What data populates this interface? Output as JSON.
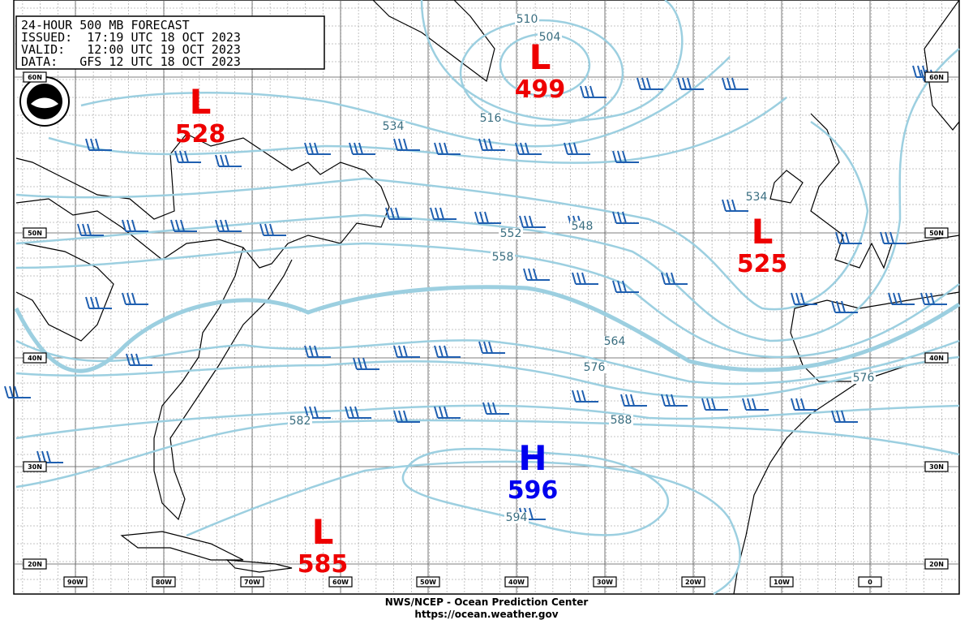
{
  "header": {
    "lines": [
      "24-HOUR 500 MB FORECAST",
      "ISSUED:  17:19 UTC 18 OCT 2023",
      "VALID:   12:00 UTC 19 OCT 2023",
      "DATA:   GFS 12 UTC 18 OCT 2023"
    ]
  },
  "centers": [
    {
      "symbol": "L",
      "value": 528
    },
    {
      "symbol": "L",
      "value": 499
    },
    {
      "symbol": "L",
      "value": 525
    },
    {
      "symbol": "H",
      "value": 596
    },
    {
      "symbol": "L",
      "value": 585
    }
  ],
  "contour_labels": [
    510,
    504,
    516,
    534,
    552,
    548,
    558,
    564,
    576,
    588,
    582,
    594,
    534,
    576
  ],
  "latitude_labels": [
    "60N",
    "50N",
    "40N",
    "30N",
    "20N"
  ],
  "longitude_labels": [
    "90W",
    "80W",
    "70W",
    "60W",
    "50W",
    "40W",
    "30W",
    "20W",
    "10W",
    "0"
  ],
  "footer": [
    "NWS/NCEP - Ocean Prediction Center",
    "https://ocean.weather.gov"
  ]
}
